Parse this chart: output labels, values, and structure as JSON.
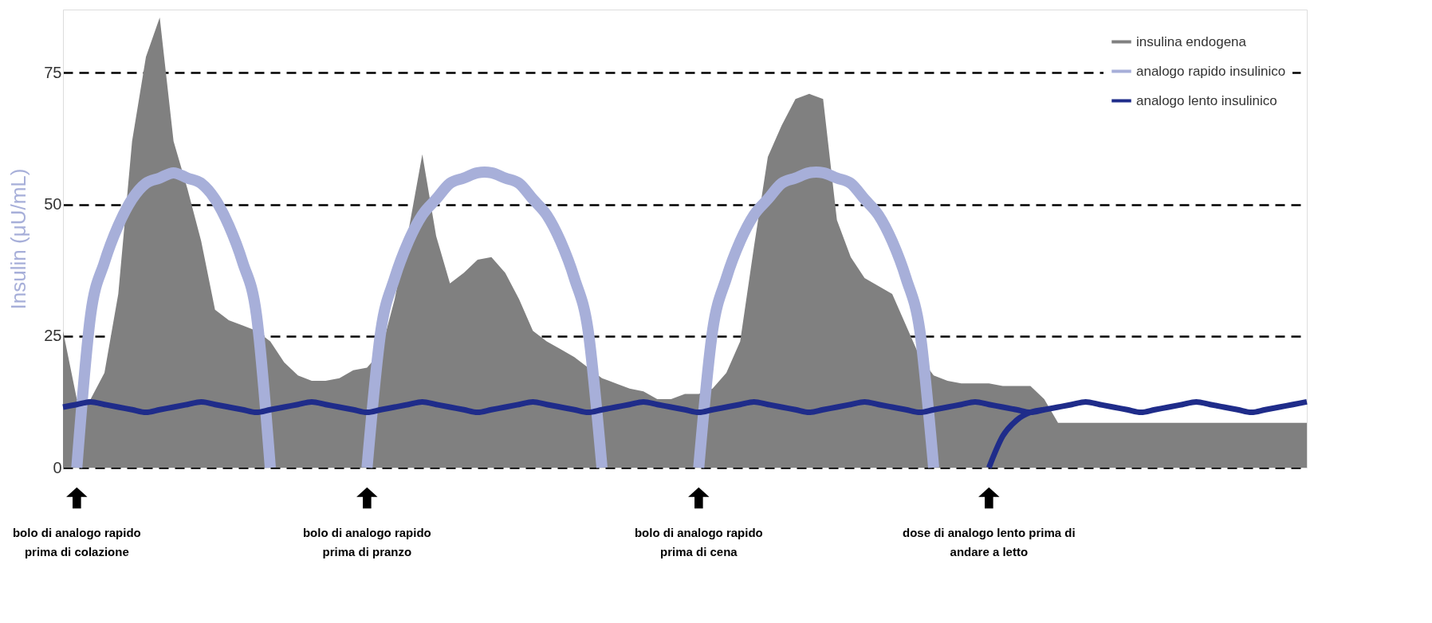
{
  "chart_data": {
    "type": "area",
    "categories": [
      null,
      null,
      null,
      null,
      null,
      null,
      null,
      null,
      null,
      null,
      null,
      null,
      null,
      null,
      null,
      null,
      null,
      null,
      null,
      null,
      null,
      null,
      null,
      null,
      null,
      null,
      null,
      null,
      null,
      null,
      null,
      null,
      null,
      null,
      null,
      null,
      null,
      null,
      null,
      null,
      null,
      null,
      null,
      null,
      null,
      null,
      null,
      null,
      null,
      null,
      null,
      null,
      null,
      null,
      null,
      null,
      null,
      null,
      null,
      null,
      null,
      null,
      null,
      null,
      null,
      null,
      null,
      null,
      null,
      null,
      null,
      null,
      null,
      null,
      null,
      null,
      null,
      null,
      null,
      null,
      null,
      null,
      null,
      null,
      null,
      null,
      null,
      null,
      null,
      null,
      null
    ],
    "ylabel": "Insulin (μU/mL)",
    "ylim": [
      0,
      87
    ],
    "yticks": [
      0,
      25,
      50,
      75
    ],
    "grid": "y",
    "tick_labels": "y",
    "legend": "top right",
    "series": [
      {
        "name": "insulina endogena",
        "color": "#808080",
        "values": [
          26,
          13,
          13,
          18,
          33,
          62,
          78,
          85.5,
          62,
          53,
          43,
          30,
          28,
          27,
          26,
          24,
          20,
          17.5,
          16.5,
          16.5,
          17,
          18.5,
          19,
          22,
          32,
          45,
          59.5,
          44,
          35,
          37,
          39.5,
          40,
          37,
          32,
          26,
          24,
          22.5,
          21,
          19,
          17,
          16,
          15,
          14.5,
          13,
          13,
          14,
          14,
          15,
          18,
          24,
          42,
          59,
          65,
          70,
          71,
          70,
          47,
          40,
          36,
          34.5,
          33,
          27,
          21,
          17.5,
          16.5,
          16,
          16,
          16,
          15.5,
          15.5,
          15.5,
          13,
          8.5,
          8.5,
          8.5,
          8.5,
          8.5,
          8.5,
          8.5,
          8.5,
          8.5,
          8.5,
          8.5,
          8.5,
          8.5,
          8.5,
          8.5,
          8.5,
          8.5,
          8.5,
          8.5
        ]
      },
      {
        "name": "analogo rapido insulinico",
        "type": "line",
        "color": "#a7afd9",
        "values": [
          null,
          0,
          29,
          39,
          46,
          51,
          54,
          55,
          56,
          55,
          54,
          51,
          46,
          39,
          29,
          0,
          null,
          null,
          null,
          null,
          null,
          null,
          0,
          26,
          36,
          43,
          48,
          51,
          54,
          55,
          56,
          56,
          55,
          54,
          51,
          48,
          43,
          36,
          26,
          0,
          null,
          null,
          null,
          null,
          null,
          null,
          0,
          26,
          36,
          43,
          48,
          51,
          54,
          55,
          56,
          56,
          55,
          54,
          51,
          48,
          43,
          36,
          26,
          0,
          null,
          null,
          null,
          null,
          null,
          null,
          null,
          null,
          null,
          null,
          null,
          null,
          null,
          null,
          null,
          null,
          null,
          null,
          null,
          null,
          null,
          null,
          null,
          null,
          null,
          null,
          null
        ]
      },
      {
        "name": "analogo lento insulinico",
        "type": "line",
        "color": "#1f2c8a",
        "values": [
          11.5,
          12,
          12.5,
          12,
          11.5,
          11,
          10.5,
          11,
          11.5,
          12,
          12.5,
          12,
          11.5,
          11,
          10.5,
          11,
          11.5,
          12,
          12.5,
          12,
          11.5,
          11,
          10.5,
          11,
          11.5,
          12,
          12.5,
          12,
          11.5,
          11,
          10.5,
          11,
          11.5,
          12,
          12.5,
          12,
          11.5,
          11,
          10.5,
          11,
          11.5,
          12,
          12.5,
          12,
          11.5,
          11,
          10.5,
          11,
          11.5,
          12,
          12.5,
          12,
          11.5,
          11,
          10.5,
          11,
          11.5,
          12,
          12.5,
          12,
          11.5,
          11,
          10.5,
          11,
          11.5,
          12,
          12.5,
          12,
          11.5,
          11,
          10.5,
          11,
          11.5,
          12,
          12.5,
          12,
          11.5,
          11,
          10.5,
          11,
          11.5,
          12,
          12.5,
          12,
          11.5,
          11,
          10.5,
          11,
          11.5,
          12,
          12.5
        ]
      },
      {
        "type": "line",
        "color": "#1f2c8a",
        "values": [
          null,
          null,
          null,
          null,
          null,
          null,
          null,
          null,
          null,
          null,
          null,
          null,
          null,
          null,
          null,
          null,
          null,
          null,
          null,
          null,
          null,
          null,
          null,
          null,
          null,
          null,
          null,
          null,
          null,
          null,
          null,
          null,
          null,
          null,
          null,
          null,
          null,
          null,
          null,
          null,
          null,
          null,
          null,
          null,
          null,
          null,
          null,
          null,
          null,
          null,
          null,
          null,
          null,
          null,
          null,
          null,
          null,
          null,
          null,
          null,
          null,
          null,
          null,
          null,
          null,
          null,
          null,
          0,
          6,
          9,
          10.5,
          11,
          null,
          null,
          null,
          null,
          null,
          null,
          null,
          null,
          null,
          null,
          null,
          null,
          null,
          null,
          null,
          null,
          null,
          null,
          null
        ]
      }
    ],
    "annotations": [
      "bolo di analogo rapido\nprima di colazione",
      "bolo di analogo rapido\nprima di pranzo",
      "bolo di analogo rapido\nprima di cena",
      "dose di analogo lento prima di\nandare a letto"
    ]
  }
}
